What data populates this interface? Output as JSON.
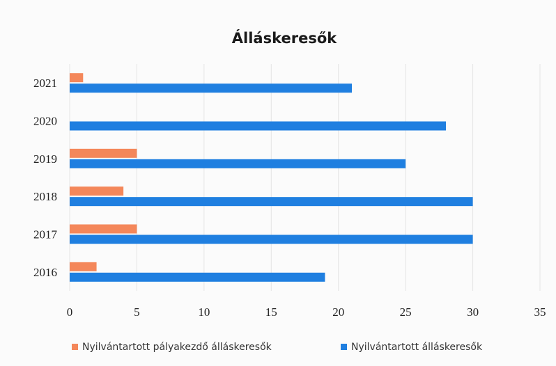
{
  "chart_data": {
    "type": "bar",
    "orientation": "horizontal",
    "title": "Álláskeresők",
    "categories": [
      "2016",
      "2017",
      "2018",
      "2019",
      "2020",
      "2021"
    ],
    "series": [
      {
        "name": "Nyilvántartott pályakezdő álláskeresők",
        "color": "#f4875a",
        "values": [
          2,
          5,
          4,
          5,
          0,
          1
        ]
      },
      {
        "name": "Nyilvántartott álláskeresők",
        "color": "#1f7fe0",
        "values": [
          19,
          30,
          30,
          25,
          28,
          21
        ]
      }
    ],
    "xlim": [
      0,
      35
    ],
    "xticks": [
      "0",
      "5",
      "10",
      "15",
      "20",
      "25",
      "30",
      "35"
    ],
    "grid": true,
    "legend_position": "bottom"
  }
}
